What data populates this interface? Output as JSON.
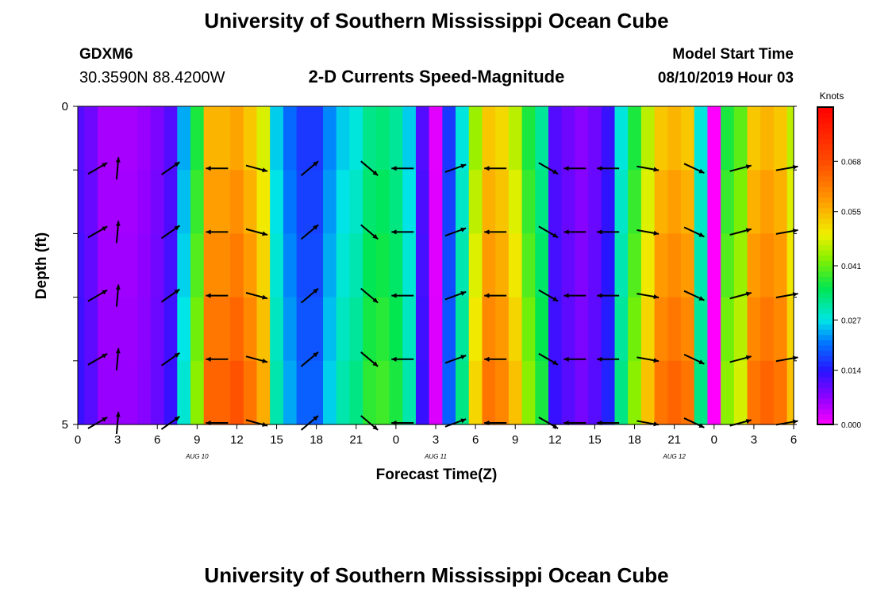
{
  "page": {
    "title": "University of Southern Mississippi Ocean Cube",
    "footer_title": "University of Southern Mississippi Ocean Cube",
    "station_id": "GDXM6",
    "station_coords": "30.3590N 88.4200W",
    "subtitle": "2-D Currents Speed-Magnitude",
    "model_start_label": "Model Start Time",
    "model_start_value": "08/10/2019 Hour 03"
  },
  "chart_data": {
    "type": "heatmap",
    "xlabel": "Forecast Time(Z)",
    "ylabel": "Depth (ft)",
    "x_ticks": [
      "0",
      "3",
      "6",
      "9",
      "12",
      "15",
      "18",
      "21",
      "0",
      "3",
      "6",
      "9",
      "12",
      "15",
      "18",
      "21",
      "0",
      "3",
      "6"
    ],
    "y_ticks": [
      "0",
      "5"
    ],
    "y_range_ft": [
      0,
      5
    ],
    "date_labels": [
      {
        "text": "AUG 10",
        "hour_index": 12
      },
      {
        "text": "AUG 11",
        "hour_index": 36
      },
      {
        "text": "AUG 12",
        "hour_index": 60
      }
    ],
    "colorbar": {
      "unit": "Knots",
      "min": 0.0,
      "max": 0.082,
      "tick_values": [
        0.0,
        0.014,
        0.027,
        0.041,
        0.055,
        0.068
      ],
      "tick_labels": [
        "0.000",
        "0.014",
        "0.027",
        "0.041",
        "0.055",
        "0.068"
      ]
    },
    "hours": 55,
    "depth_layers": 5,
    "speed_profile_knots": [
      0.012,
      0.01,
      0.008,
      0.006,
      0.006,
      0.006,
      0.006,
      0.007,
      0.008,
      0.009,
      0.012,
      0.018,
      0.026,
      0.04,
      0.054,
      0.06,
      0.06,
      0.062,
      0.062,
      0.058,
      0.052,
      0.04,
      0.028,
      0.022,
      0.02,
      0.018,
      0.018,
      0.02,
      0.024,
      0.028,
      0.028,
      0.03,
      0.035,
      0.035,
      0.036,
      0.034,
      0.03,
      0.028,
      0.012,
      0.0,
      0.002,
      0.018,
      0.03,
      0.038,
      0.048,
      0.058,
      0.064,
      0.056,
      0.05,
      0.044,
      0.04,
      0.034,
      0.024,
      0.012,
      0.01,
      0.008,
      0.008,
      0.01,
      0.012,
      0.014,
      0.03,
      0.04,
      0.044,
      0.05,
      0.058,
      0.06,
      0.06,
      0.058,
      0.048,
      0.03,
      0.0,
      0.034,
      0.04,
      0.044,
      0.05,
      0.058,
      0.06,
      0.06,
      0.058,
      0.05
    ],
    "arrows": [
      {
        "hour": 1.5,
        "angle_deg": 30
      },
      {
        "hour": 3.0,
        "angle_deg": 85
      },
      {
        "hour": 7.0,
        "angle_deg": 35
      },
      {
        "hour": 10.5,
        "angle_deg": 180
      },
      {
        "hour": 13.5,
        "angle_deg": -15
      },
      {
        "hour": 17.5,
        "angle_deg": 40
      },
      {
        "hour": 22.0,
        "angle_deg": -40
      },
      {
        "hour": 24.5,
        "angle_deg": 180
      },
      {
        "hour": 28.5,
        "angle_deg": 20
      },
      {
        "hour": 31.5,
        "angle_deg": 180
      },
      {
        "hour": 35.5,
        "angle_deg": -30
      },
      {
        "hour": 37.5,
        "angle_deg": 180
      },
      {
        "hour": 40.0,
        "angle_deg": 180
      },
      {
        "hour": 43.0,
        "angle_deg": -10
      },
      {
        "hour": 46.5,
        "angle_deg": -25
      },
      {
        "hour": 50.0,
        "angle_deg": 15
      },
      {
        "hour": 53.5,
        "angle_deg": 10
      }
    ]
  }
}
